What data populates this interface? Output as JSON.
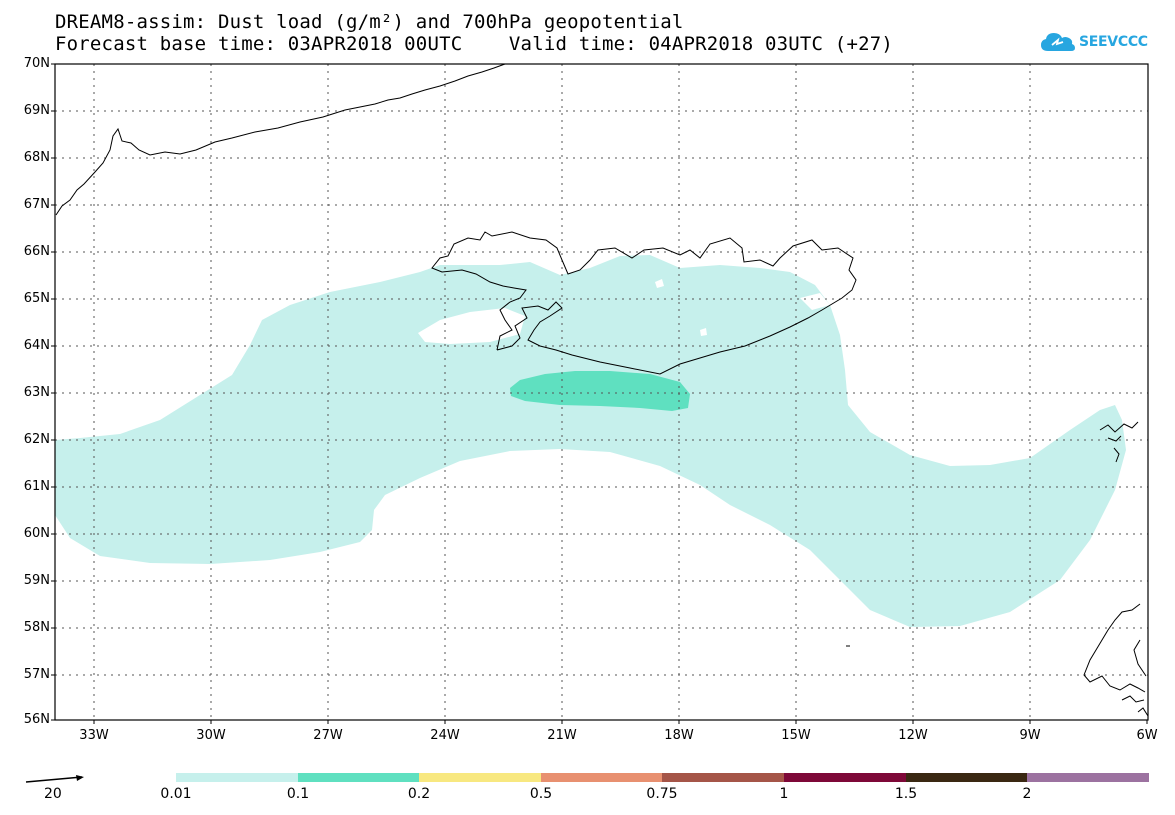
{
  "header": {
    "title_line1": "DREAM8-assim: Dust load (g/m²) and 700hPa geopotential",
    "title_line2": "Forecast base time: 03APR2018 00UTC    Valid time: 04APR2018 03UTC (+27)"
  },
  "logo": {
    "text": "SEEVCCC",
    "icon": "cloud-icon",
    "color": "#27a6e0"
  },
  "map": {
    "lat_labels": [
      "70N",
      "69N",
      "68N",
      "67N",
      "66N",
      "65N",
      "64N",
      "63N",
      "62N",
      "61N",
      "60N",
      "59N",
      "58N",
      "57N",
      "56N"
    ],
    "lon_labels": [
      "33W",
      "30W",
      "27W",
      "24W",
      "21W",
      "18W",
      "15W",
      "12W",
      "9W",
      "6W"
    ],
    "fill_colors": {
      "light": "#c6f0ec",
      "medium": "#5fe0c0"
    }
  },
  "wind_reference": {
    "label": "20"
  },
  "colorbar": {
    "colors": [
      "#c6f0ec",
      "#5fe0c0",
      "#f8e880",
      "#e89070",
      "#a55548",
      "#7e0838",
      "#3a2812",
      "#9c72a0"
    ],
    "labels": [
      "0.01",
      "0.1",
      "0.2",
      "0.5",
      "0.75",
      "1",
      "1.5",
      "2"
    ]
  }
}
